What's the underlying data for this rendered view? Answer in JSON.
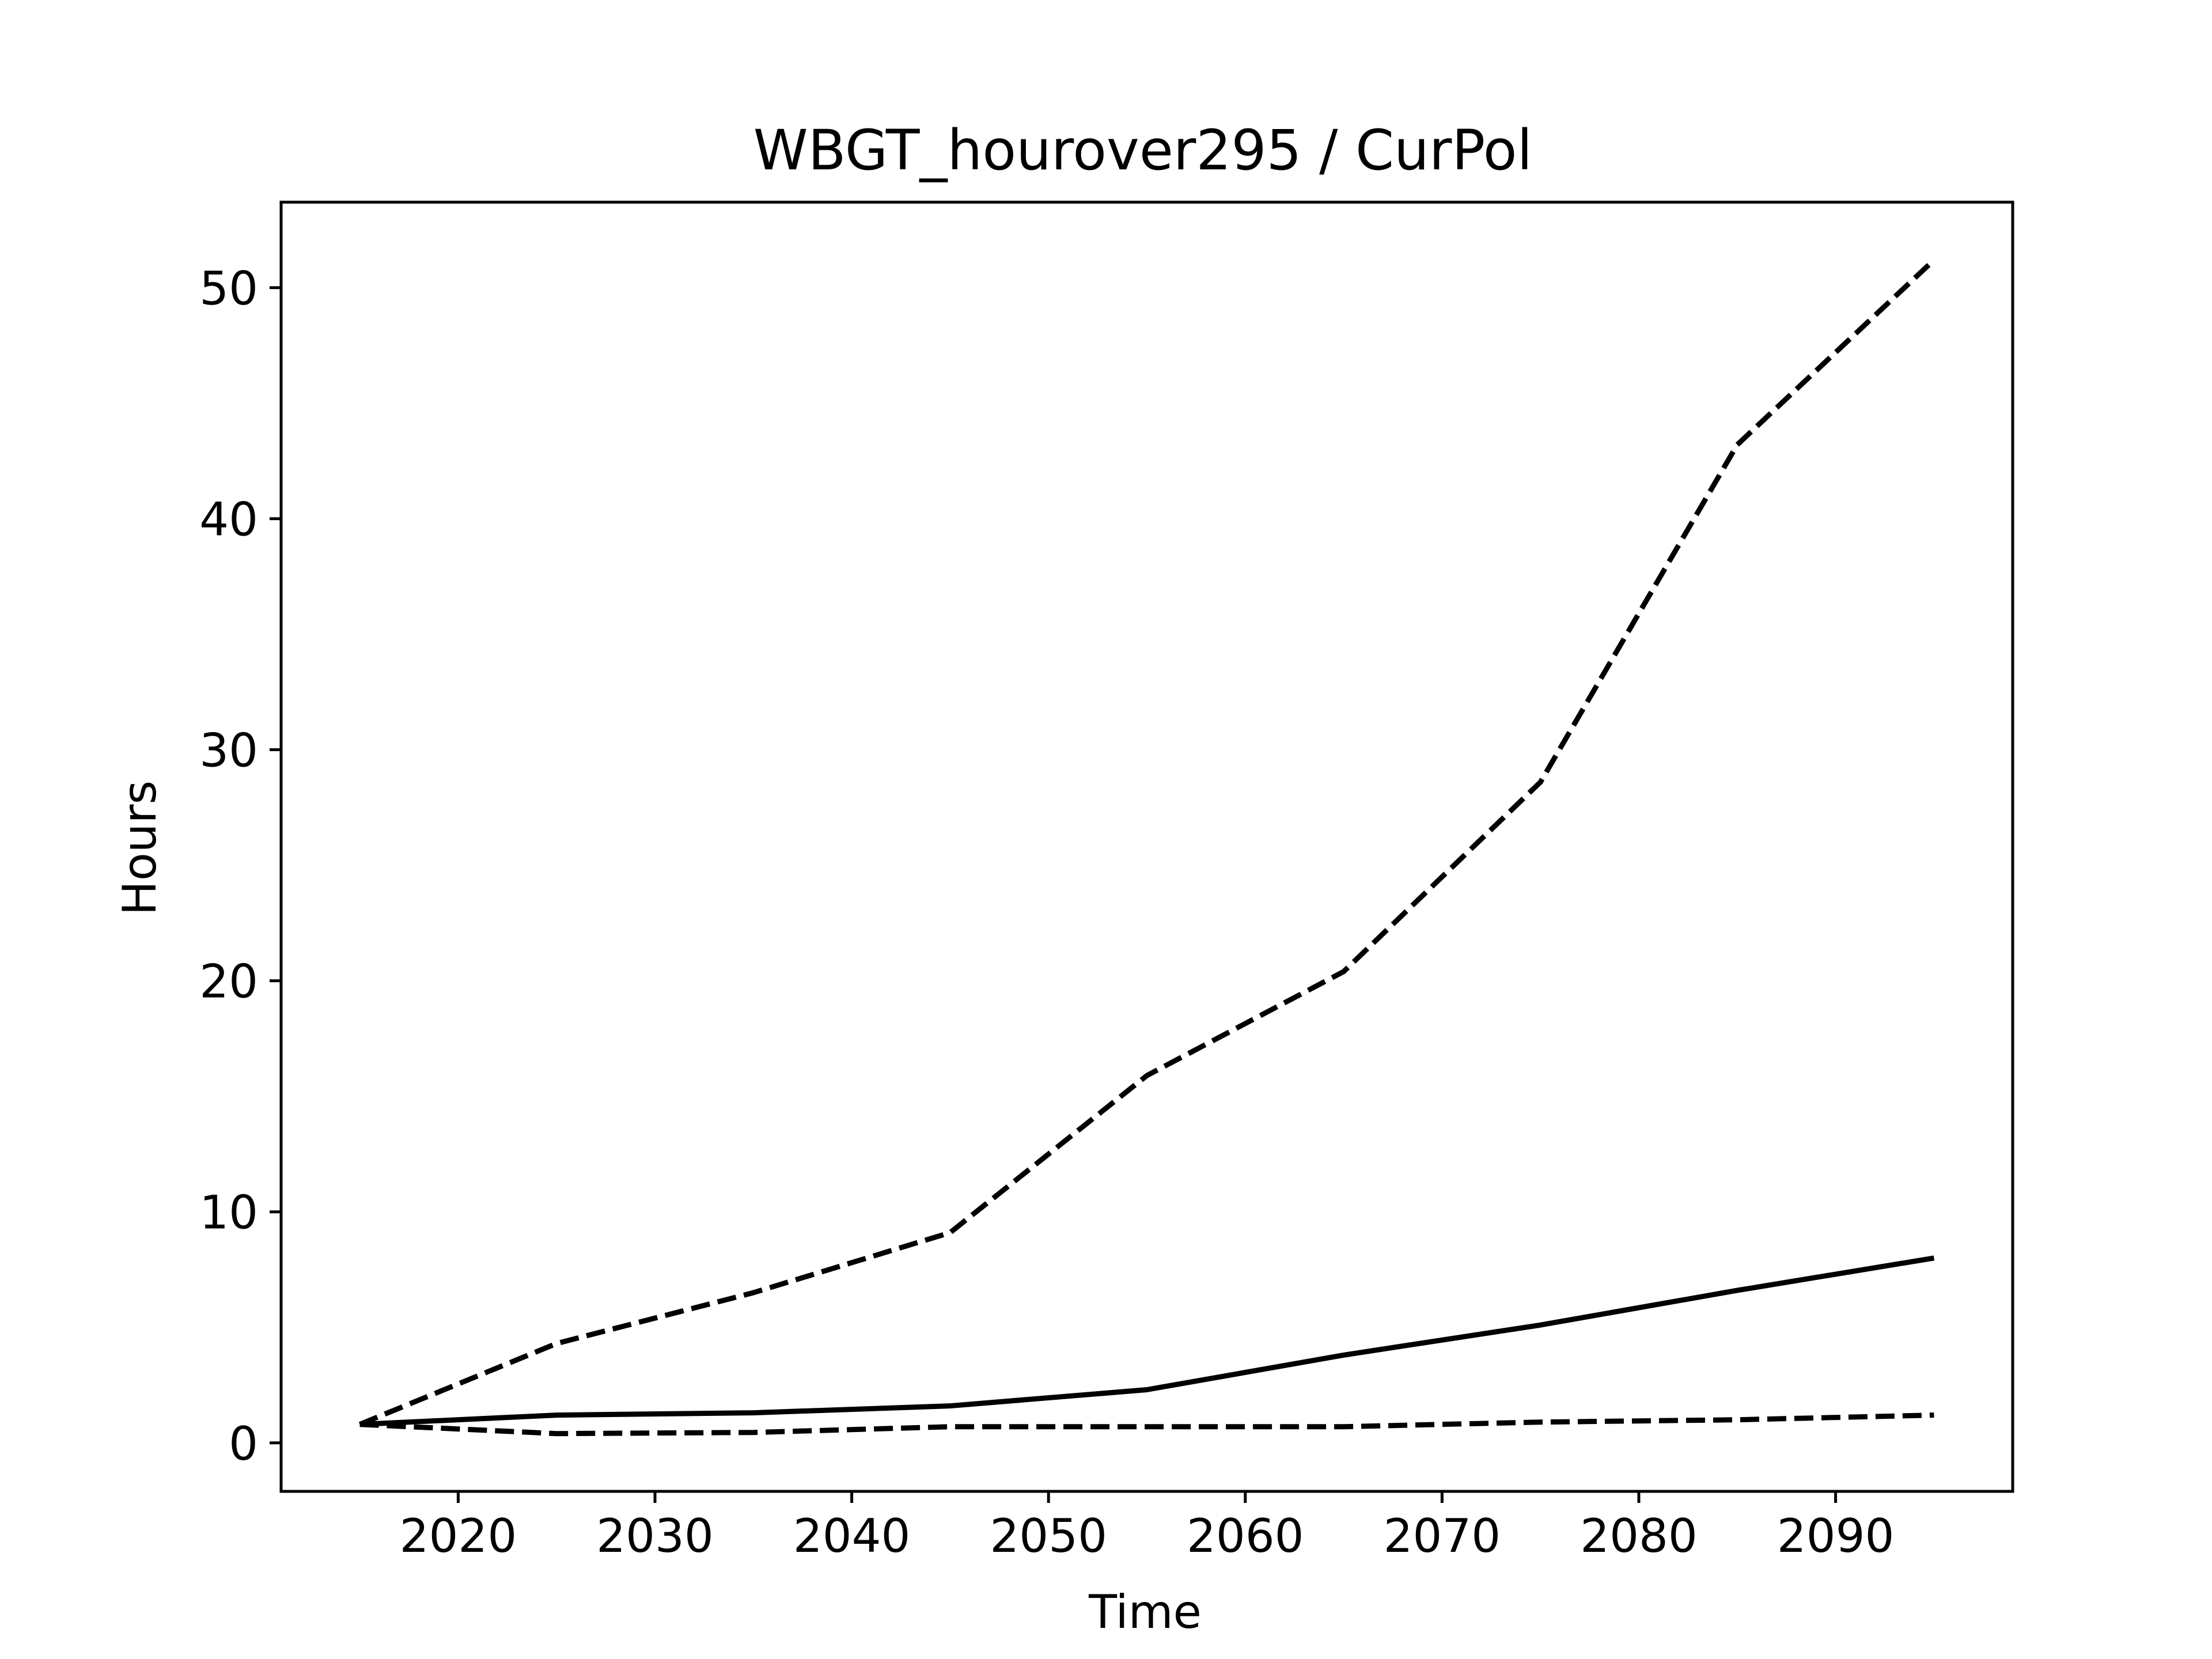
{
  "chart_data": {
    "type": "line",
    "title": "WBGT_hourover295 / CurPol",
    "xlabel": "Time",
    "ylabel": "Hours",
    "xlim": [
      2011,
      2099
    ],
    "ylim": [
      -2.1,
      53.7
    ],
    "grid": false,
    "x": [
      2015,
      2025,
      2035,
      2045,
      2055,
      2065,
      2075,
      2085,
      2095
    ],
    "xticks": [
      2020,
      2030,
      2040,
      2050,
      2060,
      2070,
      2080,
      2090
    ],
    "yticks": [
      0,
      10,
      20,
      30,
      40,
      50
    ],
    "series": [
      {
        "style": "dashed",
        "values": [
          0.8,
          4.3,
          6.5,
          9.1,
          15.9,
          20.4,
          28.6,
          43.2,
          51.2
        ]
      },
      {
        "style": "solid",
        "values": [
          0.8,
          1.2,
          1.3,
          1.6,
          2.3,
          3.8,
          5.1,
          6.6,
          8.0
        ]
      },
      {
        "style": "dashed",
        "values": [
          0.8,
          0.4,
          0.45,
          0.7,
          0.7,
          0.7,
          0.9,
          1.0,
          1.2
        ]
      }
    ]
  }
}
